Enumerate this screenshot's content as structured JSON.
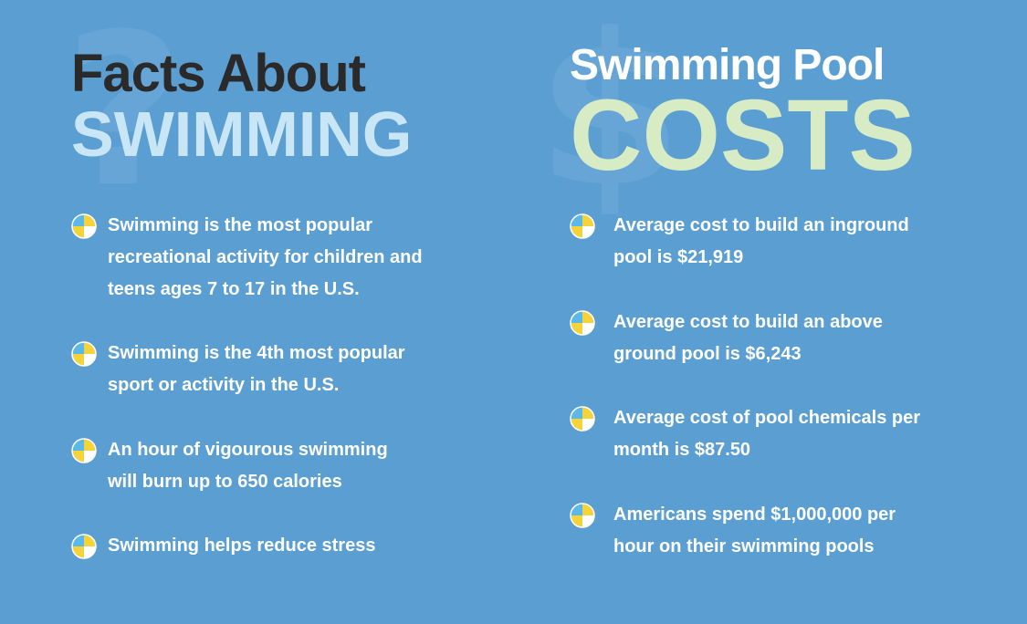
{
  "left": {
    "title_line1": "Facts About",
    "title_line2": "SWIMMING",
    "facts": [
      [
        "Swimming is the most popular",
        "recreational activity for children and",
        "teens ages 7 to 17 in the U.S."
      ],
      [
        "Swimming is the 4th most popular",
        "sport or activity in the U.S."
      ],
      [
        "An hour of vigourous swimming",
        "will burn up to 650 calories"
      ],
      [
        "Swimming helps reduce stress"
      ]
    ]
  },
  "right": {
    "title_line1": "Swimming Pool",
    "title_line2": "COSTS",
    "facts": [
      [
        "Average cost to build an inground",
        "pool is $21,919"
      ],
      [
        "Average cost to build an above",
        "ground pool is $6,243"
      ],
      [
        "Average cost of pool chemicals per",
        "month is $87.50"
      ],
      [
        "Americans spend $1,000,000 per",
        "hour on their swimming pools"
      ]
    ]
  },
  "icons": {
    "bullet": "beach-ball-icon",
    "bg_left": "question-mark-icon",
    "bg_right": "dollar-sign-icon"
  },
  "colors": {
    "background": "#5b9fd2",
    "title_dark": "#2a2a2a",
    "title_light_blue": "#c9e6f7",
    "title_light_green": "#d7ecc4"
  }
}
